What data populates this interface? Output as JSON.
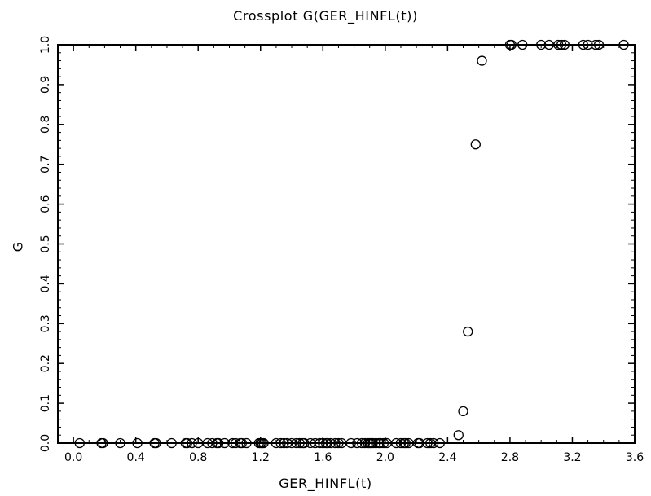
{
  "chart_data": {
    "type": "scatter",
    "title": "Crossplot G(GER_HINFL(t))",
    "xlabel": "GER_HINFL(t)",
    "ylabel": "G",
    "xlim": [
      -0.1,
      3.6
    ],
    "ylim": [
      0.0,
      1.0
    ],
    "xticks": [
      "0.0",
      "0.4",
      "0.8",
      "1.2",
      "1.6",
      "2.0",
      "2.4",
      "2.8",
      "3.2",
      "3.6"
    ],
    "yticks": [
      "0.0",
      "0.1",
      "0.2",
      "0.3",
      "0.4",
      "0.5",
      "0.6",
      "0.7",
      "0.8",
      "0.9",
      "1.0"
    ],
    "grid": false,
    "marker": "open-circle",
    "x": [
      0.04,
      0.18,
      0.19,
      0.3,
      0.41,
      0.52,
      0.53,
      0.63,
      0.72,
      0.73,
      0.76,
      0.8,
      0.86,
      0.89,
      0.92,
      0.93,
      0.97,
      1.02,
      1.04,
      1.07,
      1.08,
      1.11,
      1.19,
      1.2,
      1.21,
      1.22,
      1.3,
      1.33,
      1.35,
      1.37,
      1.4,
      1.43,
      1.45,
      1.47,
      1.48,
      1.52,
      1.55,
      1.58,
      1.6,
      1.62,
      1.63,
      1.65,
      1.68,
      1.7,
      1.72,
      1.78,
      1.82,
      1.85,
      1.87,
      1.89,
      1.9,
      1.91,
      1.92,
      1.94,
      1.96,
      1.97,
      1.99,
      2.01,
      2.07,
      2.1,
      2.12,
      2.13,
      2.15,
      2.21,
      2.22,
      2.27,
      2.29,
      2.31,
      2.35,
      2.47,
      2.5,
      2.53,
      2.58,
      2.62,
      2.8,
      2.81,
      2.88,
      3.0,
      3.05,
      3.11,
      3.13,
      3.15,
      3.27,
      3.3,
      3.35,
      3.37,
      3.53
    ],
    "y": [
      0.0,
      0.0,
      0.0,
      0.0,
      0.0,
      0.0,
      0.0,
      0.0,
      0.0,
      0.0,
      0.0,
      0.0,
      0.0,
      0.0,
      0.0,
      0.0,
      0.0,
      0.0,
      0.0,
      0.0,
      0.0,
      0.0,
      0.0,
      0.0,
      0.0,
      0.0,
      0.0,
      0.0,
      0.0,
      0.0,
      0.0,
      0.0,
      0.0,
      0.0,
      0.0,
      0.0,
      0.0,
      0.0,
      0.0,
      0.0,
      0.0,
      0.0,
      0.0,
      0.0,
      0.0,
      0.0,
      0.0,
      0.0,
      0.0,
      0.0,
      0.0,
      0.0,
      0.0,
      0.0,
      0.0,
      0.0,
      0.0,
      0.0,
      0.0,
      0.0,
      0.0,
      0.0,
      0.0,
      0.0,
      0.0,
      0.0,
      0.0,
      0.0,
      0.0,
      0.02,
      0.08,
      0.28,
      0.75,
      0.96,
      1.0,
      1.0,
      1.0,
      1.0,
      1.0,
      1.0,
      1.0,
      1.0,
      1.0,
      1.0,
      1.0,
      1.0,
      1.0
    ]
  }
}
